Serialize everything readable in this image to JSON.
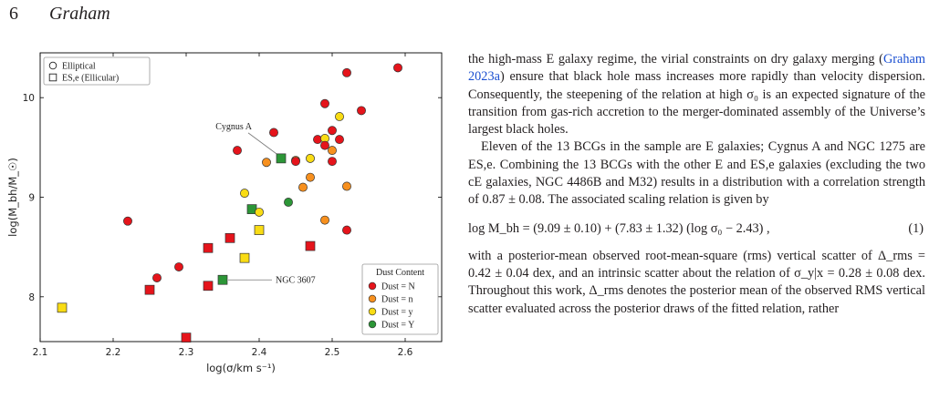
{
  "header": {
    "page_number": "6",
    "author": "Graham"
  },
  "chart_data": {
    "type": "scatter",
    "xlabel": "log(σ/km s⁻¹)",
    "ylabel": "log(M_bh/M_☉)",
    "xlim": [
      2.1,
      2.65
    ],
    "ylim": [
      7.55,
      10.45
    ],
    "xticks": [
      "2.1",
      "2.2",
      "2.3",
      "2.4",
      "2.5",
      "2.6"
    ],
    "yticks": [
      "8",
      "9",
      "10"
    ],
    "grid": false,
    "shape_legend": {
      "position": "top-left",
      "items": [
        {
          "marker": "circle",
          "label": "Elliptical"
        },
        {
          "marker": "square",
          "label": "ES,e (Ellicular)"
        }
      ]
    },
    "color_legend": {
      "position": "bottom-right",
      "title": "Dust Content",
      "items": [
        {
          "key": "N",
          "label": "Dust = N",
          "color": "#e5141b"
        },
        {
          "key": "n",
          "label": "Dust = n",
          "color": "#f7901e"
        },
        {
          "key": "y",
          "label": "Dust = y",
          "color": "#f9dc14"
        },
        {
          "key": "Y",
          "label": "Dust = Y",
          "color": "#2c9637"
        }
      ]
    },
    "annotations": [
      {
        "text": "Cygnus A",
        "x": 2.43,
        "y": 9.39
      },
      {
        "text": "NGC 3607",
        "x": 2.35,
        "y": 8.17
      }
    ],
    "points": [
      {
        "x": 2.59,
        "y": 10.3,
        "shape": "circle",
        "dust": "N"
      },
      {
        "x": 2.52,
        "y": 10.25,
        "shape": "circle",
        "dust": "N"
      },
      {
        "x": 2.49,
        "y": 9.94,
        "shape": "circle",
        "dust": "N"
      },
      {
        "x": 2.54,
        "y": 9.87,
        "shape": "circle",
        "dust": "N"
      },
      {
        "x": 2.51,
        "y": 9.81,
        "shape": "circle",
        "dust": "y"
      },
      {
        "x": 2.5,
        "y": 9.67,
        "shape": "circle",
        "dust": "N"
      },
      {
        "x": 2.42,
        "y": 9.65,
        "shape": "circle",
        "dust": "N"
      },
      {
        "x": 2.48,
        "y": 9.58,
        "shape": "circle",
        "dust": "N"
      },
      {
        "x": 2.49,
        "y": 9.59,
        "shape": "circle",
        "dust": "y"
      },
      {
        "x": 2.51,
        "y": 9.58,
        "shape": "circle",
        "dust": "N"
      },
      {
        "x": 2.49,
        "y": 9.52,
        "shape": "circle",
        "dust": "N"
      },
      {
        "x": 2.37,
        "y": 9.47,
        "shape": "circle",
        "dust": "N"
      },
      {
        "x": 2.5,
        "y": 9.47,
        "shape": "circle",
        "dust": "n"
      },
      {
        "x": 2.43,
        "y": 9.39,
        "shape": "square",
        "dust": "Y"
      },
      {
        "x": 2.47,
        "y": 9.39,
        "shape": "circle",
        "dust": "y"
      },
      {
        "x": 2.45,
        "y": 9.37,
        "shape": "circle",
        "dust": "n"
      },
      {
        "x": 2.45,
        "y": 9.36,
        "shape": "circle",
        "dust": "N"
      },
      {
        "x": 2.41,
        "y": 9.35,
        "shape": "circle",
        "dust": "n"
      },
      {
        "x": 2.5,
        "y": 9.36,
        "shape": "circle",
        "dust": "N"
      },
      {
        "x": 2.47,
        "y": 9.2,
        "shape": "circle",
        "dust": "n"
      },
      {
        "x": 2.46,
        "y": 9.1,
        "shape": "circle",
        "dust": "n"
      },
      {
        "x": 2.52,
        "y": 9.11,
        "shape": "circle",
        "dust": "n"
      },
      {
        "x": 2.38,
        "y": 9.04,
        "shape": "circle",
        "dust": "y"
      },
      {
        "x": 2.44,
        "y": 8.95,
        "shape": "circle",
        "dust": "Y"
      },
      {
        "x": 2.39,
        "y": 8.88,
        "shape": "square",
        "dust": "Y"
      },
      {
        "x": 2.4,
        "y": 8.85,
        "shape": "circle",
        "dust": "y"
      },
      {
        "x": 2.49,
        "y": 8.77,
        "shape": "circle",
        "dust": "n"
      },
      {
        "x": 2.22,
        "y": 8.76,
        "shape": "circle",
        "dust": "N"
      },
      {
        "x": 2.4,
        "y": 8.67,
        "shape": "square",
        "dust": "y"
      },
      {
        "x": 2.52,
        "y": 8.67,
        "shape": "circle",
        "dust": "N"
      },
      {
        "x": 2.36,
        "y": 8.59,
        "shape": "square",
        "dust": "N"
      },
      {
        "x": 2.47,
        "y": 8.51,
        "shape": "square",
        "dust": "N"
      },
      {
        "x": 2.33,
        "y": 8.49,
        "shape": "square",
        "dust": "N"
      },
      {
        "x": 2.38,
        "y": 8.39,
        "shape": "square",
        "dust": "y"
      },
      {
        "x": 2.29,
        "y": 8.3,
        "shape": "circle",
        "dust": "N"
      },
      {
        "x": 2.26,
        "y": 8.19,
        "shape": "circle",
        "dust": "N"
      },
      {
        "x": 2.35,
        "y": 8.17,
        "shape": "square",
        "dust": "Y"
      },
      {
        "x": 2.33,
        "y": 8.11,
        "shape": "square",
        "dust": "N"
      },
      {
        "x": 2.25,
        "y": 8.07,
        "shape": "square",
        "dust": "N"
      },
      {
        "x": 2.13,
        "y": 7.89,
        "shape": "square",
        "dust": "y"
      },
      {
        "x": 2.3,
        "y": 7.59,
        "shape": "square",
        "dust": "N"
      }
    ]
  },
  "body_text": {
    "p1_a": "the high-mass E galaxy regime, the virial constraints on dry galaxy merging (",
    "p1_cite": "Graham 2023a",
    "p1_b": ") ensure that black hole mass increases more rapidly than velocity dispersion. Consequently, the steepening of the relation at high σ₀ is an expected signature of the transition from gas-rich accretion to the merger-dominated assembly of the Universe’s largest black holes.",
    "p2": "Eleven of the 13 BCGs in the sample are E galaxies; Cygnus A and NGC 1275 are ES,e. Combining the 13 BCGs with the other E and ES,e galaxies (excluding the two cE galaxies, NGC 4486B and M32) results in a distribution with a correlation strength of 0.87 ± 0.08. The associated scaling relation is given by",
    "equation": "log M_bh = (9.09 ± 0.10) + (7.83 ± 1.32) (log σ₀ − 2.43) ,",
    "equation_number": "(1)",
    "p3": "with a posterior-mean observed root-mean-square (rms) vertical scatter of Δ_rms = 0.42 ± 0.04 dex, and an intrinsic scatter about the relation of σ_y|x = 0.28 ± 0.08 dex. Throughout this work, Δ_rms denotes the posterior mean of the observed RMS vertical scatter evaluated across the posterior draws of the fitted relation, rather"
  }
}
